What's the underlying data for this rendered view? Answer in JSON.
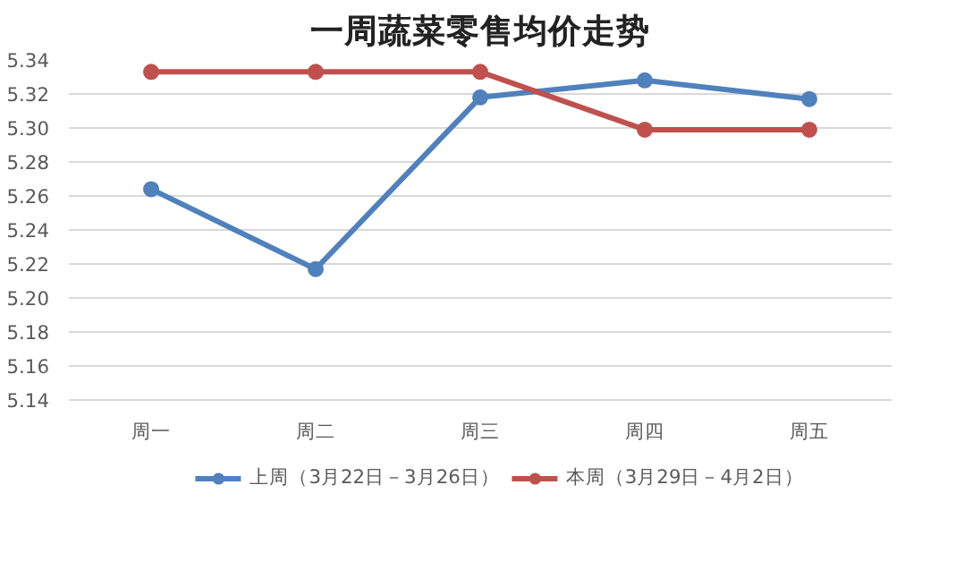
{
  "chart_data": {
    "type": "line",
    "title": "一周蔬菜零售均价走势",
    "categories": [
      "周一",
      "周二",
      "周三",
      "周四",
      "周五"
    ],
    "series": [
      {
        "name": "上周（3月22日－3月26日）",
        "color": "#4f81bd",
        "values": [
          5.264,
          5.217,
          5.318,
          5.328,
          5.317
        ]
      },
      {
        "name": "本周（3月29日－4月2日）",
        "color": "#c0504d",
        "values": [
          5.333,
          5.333,
          5.333,
          5.299,
          5.299
        ]
      }
    ],
    "ylim": [
      5.14,
      5.34
    ],
    "yticks": [
      {
        "value": 5.14,
        "label": "5.14"
      },
      {
        "value": 5.16,
        "label": "5.16"
      },
      {
        "value": 5.18,
        "label": "5.18"
      },
      {
        "value": 5.2,
        "label": "5.20"
      },
      {
        "value": 5.22,
        "label": "5.22"
      },
      {
        "value": 5.24,
        "label": "5.24"
      },
      {
        "value": 5.26,
        "label": "5.26"
      },
      {
        "value": 5.28,
        "label": "5.28"
      },
      {
        "value": 5.3,
        "label": "5.30"
      },
      {
        "value": 5.32,
        "label": "5.32"
      },
      {
        "value": 5.34,
        "label": "5.34"
      }
    ],
    "grid": "y",
    "legend": "bottom",
    "marker": "circle",
    "line_style": "solid"
  }
}
